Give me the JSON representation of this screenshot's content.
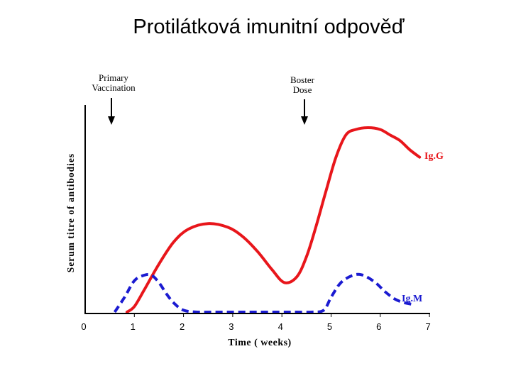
{
  "slide": {
    "title": "Protilátková imunitní odpověď"
  },
  "chart_data": {
    "type": "line",
    "title": "",
    "xlabel": "Time ( weeks)",
    "ylabel": "Serum titre of antibodies",
    "xlim": [
      0,
      7
    ],
    "ylim": [
      0,
      100
    ],
    "x_ticks": [
      "0",
      "1",
      "2",
      "3",
      "4",
      "5",
      "6",
      "7"
    ],
    "colors": {
      "IgG": "#e8161b",
      "IgM": "#1b1bd1",
      "axis": "#000000"
    },
    "annotations": [
      {
        "id": "primary",
        "lines": [
          "Primary",
          "Vaccination"
        ],
        "x": 0.55
      },
      {
        "id": "booster",
        "lines": [
          "Boster",
          "Dose"
        ],
        "x": 4.45
      }
    ],
    "series": [
      {
        "name": "Ig.G",
        "style": "solid",
        "x": [
          0.85,
          1.0,
          1.2,
          1.5,
          1.8,
          2.1,
          2.5,
          2.9,
          3.2,
          3.5,
          3.8,
          4.05,
          4.3,
          4.5,
          4.7,
          4.9,
          5.1,
          5.3,
          5.5,
          5.75,
          6.0,
          6.2,
          6.4,
          6.6,
          6.8
        ],
        "y": [
          0,
          3,
          12,
          26,
          38,
          45,
          48,
          46,
          41,
          33,
          23,
          16,
          19,
          30,
          47,
          66,
          84,
          96,
          99,
          100,
          99,
          96,
          93,
          88,
          84
        ]
      },
      {
        "name": "Ig.M",
        "style": "dashed",
        "x": [
          0.6,
          0.8,
          1.0,
          1.2,
          1.35,
          1.5,
          1.65,
          1.8,
          2.0,
          2.3,
          2.6,
          3.0,
          3.5,
          4.0,
          4.3,
          4.6,
          4.85,
          5.0,
          5.2,
          5.45,
          5.65,
          5.9,
          6.1,
          6.3,
          6.5,
          6.7
        ],
        "y": [
          0,
          8,
          17,
          20,
          20,
          16,
          10,
          5,
          1,
          0,
          0,
          0,
          0,
          0,
          0,
          0,
          1,
          8,
          16,
          20,
          20,
          16,
          11,
          7,
          5,
          4
        ]
      }
    ]
  }
}
